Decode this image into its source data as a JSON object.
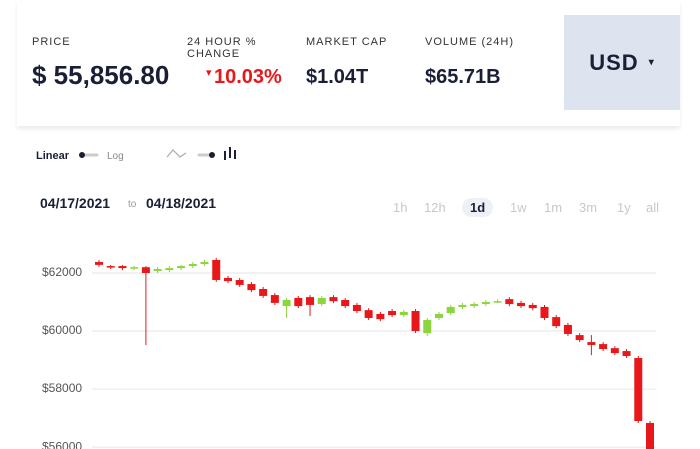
{
  "header": {
    "stats": [
      {
        "label": "PRICE",
        "value": "$ 55,856.80"
      },
      {
        "label": "24 HOUR % CHANGE",
        "value": "10.03%"
      },
      {
        "label": "MARKET CAP",
        "value": "$1.04T"
      },
      {
        "label": "VOLUME (24H)",
        "value": "$65.71B"
      }
    ],
    "currency": "USD"
  },
  "controls": {
    "scale": [
      "Linear",
      "Log"
    ],
    "from": "04/17/2021",
    "to_word": "to",
    "to": "04/18/2021",
    "ranges": [
      "1h",
      "12h",
      "1d",
      "1w",
      "1m",
      "3m",
      "1y",
      "all"
    ],
    "active_range": 2
  },
  "chart_data": {
    "type": "candlestick",
    "open": [
      62380,
      62240,
      62240,
      62170,
      62200,
      62070,
      62100,
      62170,
      62240,
      62310,
      62450,
      61830,
      61760,
      61620,
      61450,
      61240,
      60860,
      61140,
      61170,
      60930,
      61170,
      61070,
      60900,
      60720,
      60590,
      60690,
      60550,
      60690,
      59930,
      60450,
      60620,
      60830,
      60860,
      60930,
      61000,
      61100,
      60970,
      60900,
      60830,
      60480,
      60210,
      59860,
      59620,
      59550,
      59410,
      59310,
      59070,
      56830
    ],
    "close": [
      62280,
      62210,
      62170,
      62200,
      62000,
      62140,
      62170,
      62240,
      62310,
      62380,
      61760,
      61720,
      61590,
      61410,
      61210,
      60970,
      61070,
      60860,
      60900,
      61140,
      61030,
      60860,
      60690,
      60450,
      60410,
      60550,
      60660,
      60000,
      60380,
      60590,
      60830,
      60900,
      60930,
      61000,
      61030,
      60930,
      60860,
      60790,
      60450,
      60170,
      59900,
      59690,
      59520,
      59380,
      59240,
      59140,
      56900,
      55900
    ],
    "high": [
      62450,
      62280,
      62280,
      62240,
      62240,
      62210,
      62240,
      62280,
      62380,
      62450,
      62520,
      61900,
      61830,
      61690,
      61520,
      61310,
      61140,
      61210,
      61240,
      61210,
      61240,
      61140,
      60970,
      60790,
      60660,
      60760,
      60730,
      60760,
      60450,
      60660,
      60900,
      60970,
      61000,
      61070,
      61100,
      61170,
      61040,
      60970,
      60900,
      60550,
      60280,
      59930,
      59860,
      59620,
      59480,
      59380,
      59140,
      56900
    ],
    "low": [
      62210,
      62140,
      62100,
      62100,
      59520,
      62000,
      62030,
      62100,
      62170,
      62240,
      61690,
      61650,
      61520,
      61340,
      61140,
      60900,
      60450,
      60790,
      60520,
      60860,
      60960,
      60790,
      60620,
      60380,
      60340,
      60480,
      60480,
      59930,
      59830,
      60380,
      60550,
      60760,
      60790,
      60860,
      60960,
      60860,
      60790,
      60720,
      60380,
      60100,
      59830,
      59620,
      59170,
      59310,
      59170,
      59070,
      56830,
      55900
    ],
    "up_color": "#8bd63c",
    "down_color": "#e8171a",
    "ylim": [
      55900,
      63000
    ],
    "yticks": [
      {
        "value": 56000,
        "label": "$56000"
      },
      {
        "value": 58000,
        "label": "$58000"
      },
      {
        "value": 60000,
        "label": "$60000"
      },
      {
        "value": 62000,
        "label": "$62000"
      }
    ],
    "grid": true
  }
}
